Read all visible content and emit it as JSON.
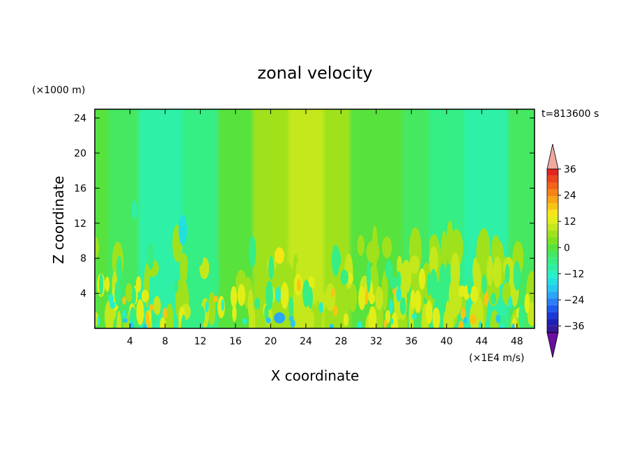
{
  "chart_data": {
    "type": "heatmap",
    "title": "zonal velocity",
    "xlabel": "X coordinate",
    "ylabel": "Z coordinate",
    "y_unit": "(×1000 m)",
    "time_label": "t=813600 s",
    "colorbar_unit": "(×1E4 m/s)",
    "xlim": [
      0,
      50
    ],
    "ylim": [
      0,
      25
    ],
    "x_ticks": [
      "4",
      "8",
      "12",
      "16",
      "20",
      "24",
      "28",
      "32",
      "36",
      "40",
      "44",
      "48"
    ],
    "y_ticks": [
      "4",
      "8",
      "12",
      "16",
      "20",
      "24"
    ],
    "colorbar_ticks": [
      "36",
      "24",
      "12",
      "0",
      "−12",
      "−24",
      "−36"
    ],
    "colorbar_levels": [
      -42,
      -39,
      -36,
      -33,
      -30,
      -27,
      -24,
      -21,
      -18,
      -15,
      -12,
      -9,
      -6,
      -3,
      0,
      3,
      6,
      9,
      12,
      15,
      18,
      21,
      24,
      27,
      30,
      33,
      36,
      39,
      42
    ],
    "colorbar_colors": [
      "#6a0ea0",
      "#35189a",
      "#1f1fb4",
      "#1a38d6",
      "#1f59ee",
      "#2a7ff5",
      "#2aa6f5",
      "#25c8ef",
      "#22e0e0",
      "#28f0c8",
      "#2df0a6",
      "#36ee84",
      "#44e860",
      "#58e23c",
      "#7ce21e",
      "#9fe21c",
      "#c4e81c",
      "#e2ee18",
      "#f6e616",
      "#f8c414",
      "#f8a414",
      "#f68414",
      "#f26418",
      "#ec441c",
      "#e4241e",
      "#f0a8a0"
    ],
    "bands": [
      {
        "x": [
          0,
          1.5
        ],
        "value": -3
      },
      {
        "x": [
          1.5,
          5
        ],
        "value": -6
      },
      {
        "x": [
          5,
          10
        ],
        "value": -11
      },
      {
        "x": [
          10,
          14
        ],
        "value": -7
      },
      {
        "x": [
          14,
          18
        ],
        "value": -2
      },
      {
        "x": [
          18,
          22
        ],
        "value": 4
      },
      {
        "x": [
          22,
          26
        ],
        "value": 6
      },
      {
        "x": [
          26,
          29
        ],
        "value": 5
      },
      {
        "x": [
          29,
          35
        ],
        "value": -1
      },
      {
        "x": [
          35,
          38
        ],
        "value": -4
      },
      {
        "x": [
          38,
          42
        ],
        "value": -7
      },
      {
        "x": [
          42,
          47
        ],
        "value": -10
      },
      {
        "x": [
          47,
          50
        ],
        "value": -6
      }
    ]
  }
}
